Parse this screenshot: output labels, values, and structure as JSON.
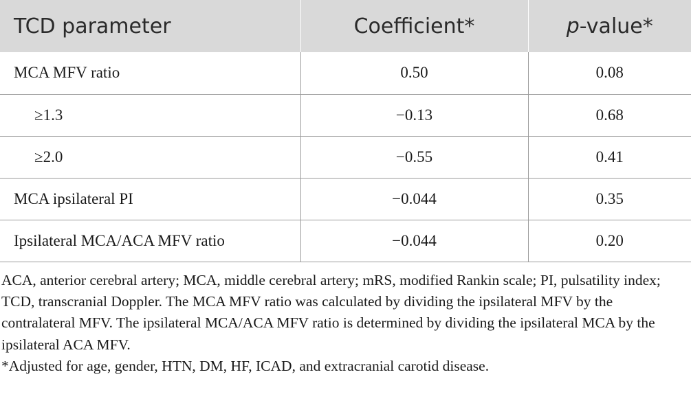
{
  "table": {
    "headers": {
      "parameter": "TCD parameter",
      "coefficient": "Coefficient*",
      "pvalue_italic": "p",
      "pvalue_rest": "-value*"
    },
    "rows": [
      {
        "label": "MCA MFV ratio",
        "coefficient": "0.50",
        "pvalue": "0.08",
        "indent": false
      },
      {
        "label": "≥1.3",
        "coefficient": "−0.13",
        "pvalue": "0.68",
        "indent": true
      },
      {
        "label": "≥2.0",
        "coefficient": "−0.55",
        "pvalue": "0.41",
        "indent": true
      },
      {
        "label": "MCA ipsilateral PI",
        "coefficient": "−0.044",
        "pvalue": "0.35",
        "indent": false
      },
      {
        "label": "Ipsilateral MCA/ACA MFV ratio",
        "coefficient": "−0.044",
        "pvalue": "0.20",
        "indent": false
      }
    ]
  },
  "notes": {
    "abbreviations": "ACA, anterior cerebral artery; MCA, middle cerebral artery; mRS, modified Rankin scale; PI, pulsatility index; TCD, transcranial Doppler. The MCA MFV ratio was calculated by dividing the ipsilateral MFV by the contralateral MFV. The ipsilateral MCA/ACA MFV ratio is determined by dividing the ipsilateral MCA by the ipsilateral ACA MFV.",
    "footnote": "*Adjusted for age, gender, HTN, DM, HF, ICAD, and extracranial carotid disease."
  }
}
